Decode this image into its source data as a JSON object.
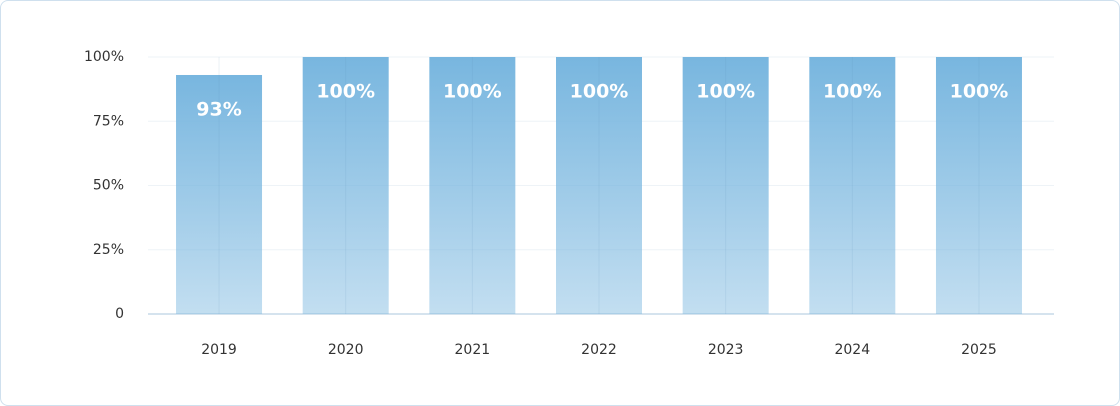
{
  "chart_data": {
    "type": "bar",
    "categories": [
      "2019",
      "2020",
      "2021",
      "2022",
      "2023",
      "2024",
      "2025"
    ],
    "values": [
      93,
      100,
      100,
      100,
      100,
      100,
      100
    ],
    "value_labels": [
      "93%",
      "100%",
      "100%",
      "100%",
      "100%",
      "100%",
      "100%"
    ],
    "color": "#78b6df",
    "ylim": [
      0,
      100
    ],
    "yticks": [
      0,
      {
        "value": 25,
        "label": "25%"
      },
      {
        "value": 50,
        "label": "50%"
      },
      {
        "value": 75,
        "label": "75%"
      },
      {
        "value": 100,
        "label": "100%"
      }
    ],
    "grid": true
  }
}
